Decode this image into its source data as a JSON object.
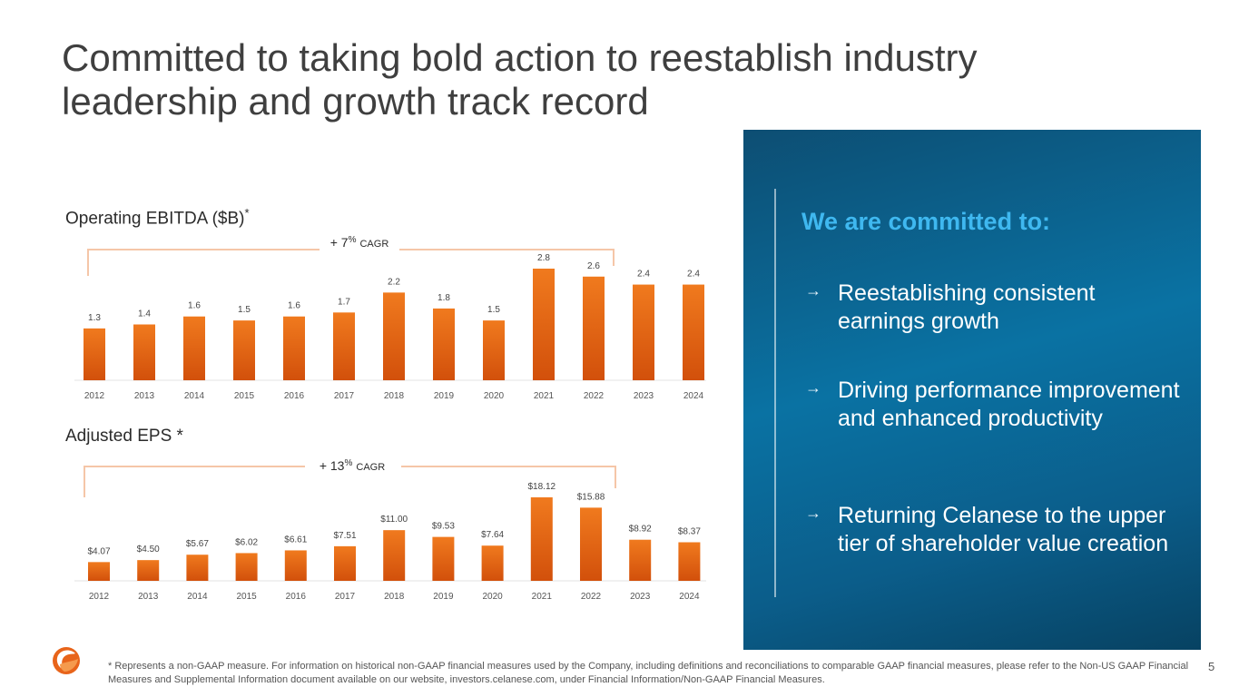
{
  "title": {
    "line1": "Committed to taking bold action to reestablish industry",
    "line2": "leadership and growth track record"
  },
  "ebitda": {
    "label": "Operating EBITDA ($B)",
    "label_mark": "*",
    "cagr_prefix": "+ 7",
    "cagr_pct": "%",
    "cagr_suffix": "CAGR"
  },
  "eps": {
    "label": "Adjusted EPS *",
    "cagr_prefix": "+ 13",
    "cagr_pct": "%",
    "cagr_suffix": "CAGR"
  },
  "chart_data": [
    {
      "type": "bar",
      "title": "Operating EBITDA ($B)",
      "categories": [
        "2012",
        "2013",
        "2014",
        "2015",
        "2016",
        "2017",
        "2018",
        "2019",
        "2020",
        "2021",
        "2022",
        "2023",
        "2024"
      ],
      "values": [
        1.3,
        1.4,
        1.6,
        1.5,
        1.6,
        1.7,
        2.2,
        1.8,
        1.5,
        2.8,
        2.6,
        2.4,
        2.4
      ],
      "labels": [
        "1.3",
        "1.4",
        "1.6",
        "1.5",
        "1.6",
        "1.7",
        "2.2",
        "1.8",
        "1.5",
        "2.8",
        "2.6",
        "2.4",
        "2.4"
      ],
      "ylim": [
        0,
        2.8
      ],
      "annotation": "+ 7% CAGR"
    },
    {
      "type": "bar",
      "title": "Adjusted EPS *",
      "categories": [
        "2012",
        "2013",
        "2014",
        "2015",
        "2016",
        "2017",
        "2018",
        "2019",
        "2020",
        "2021",
        "2022",
        "2023",
        "2024"
      ],
      "values": [
        4.07,
        4.5,
        5.67,
        6.02,
        6.61,
        7.51,
        11.0,
        9.53,
        7.64,
        18.12,
        15.88,
        8.92,
        8.37
      ],
      "labels": [
        "$4.07",
        "$4.50",
        "$5.67",
        "$6.02",
        "$6.61",
        "$7.51",
        "$11.00",
        "$9.53",
        "$7.64",
        "$18.12",
        "$15.88",
        "$8.92",
        "$8.37"
      ],
      "ylim": [
        0,
        18.12
      ],
      "annotation": "+ 13% CAGR"
    }
  ],
  "panel": {
    "heading": "We are committed to:",
    "items": [
      {
        "arrow": "→",
        "text": "Reestablishing consistent earnings growth"
      },
      {
        "arrow": "→",
        "text": "Driving performance improvement and enhanced productivity"
      },
      {
        "arrow": "→",
        "text": "Returning Celanese to the upper tier of shareholder value creation"
      }
    ]
  },
  "footnote": "* Represents a non-GAAP measure. For information on historical non-GAAP financial measures used by the Company, including definitions and reconciliations to comparable GAAP financial measures, please refer to the Non-US GAAP Financial Measures and Supplemental Information document available on our website, investors.celanese.com, under Financial Information/Non-GAAP Financial Measures.",
  "page_number": "5",
  "colors": {
    "bar_top": "#f07a1e",
    "bar_bottom": "#d2500b",
    "bracket": "#f5c6a8",
    "panel_heading": "#3fb8f0"
  }
}
